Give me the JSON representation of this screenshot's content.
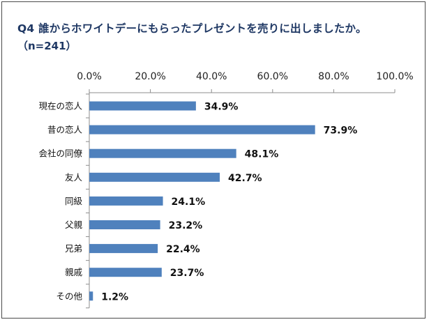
{
  "title": "Q4 誰からホワイトデーにもらったプレゼントを売りに出しましたか。",
  "subtitle": "（n=241）",
  "chart_data": {
    "type": "bar",
    "orientation": "horizontal",
    "categories": [
      "現在の恋人",
      "昔の恋人",
      "会社の同僚",
      "友人",
      "同級",
      "父親",
      "兄弟",
      "親戚",
      "その他"
    ],
    "values": [
      34.9,
      73.9,
      48.1,
      42.7,
      24.1,
      23.2,
      22.4,
      23.7,
      1.2
    ],
    "data_labels": [
      "34.9%",
      "73.9%",
      "48.1%",
      "42.7%",
      "24.1%",
      "23.2%",
      "22.4%",
      "23.7%",
      "1.2%"
    ],
    "xlim": [
      0,
      100
    ],
    "ticks": [
      0,
      20,
      40,
      60,
      80,
      100
    ],
    "tick_labels": [
      "0.0%",
      "20.0%",
      "40.0%",
      "60.0%",
      "80.0%",
      "100.0%"
    ],
    "axis_position": "top",
    "grid": false,
    "legend": "none",
    "bar_color": "#4f81bd"
  }
}
